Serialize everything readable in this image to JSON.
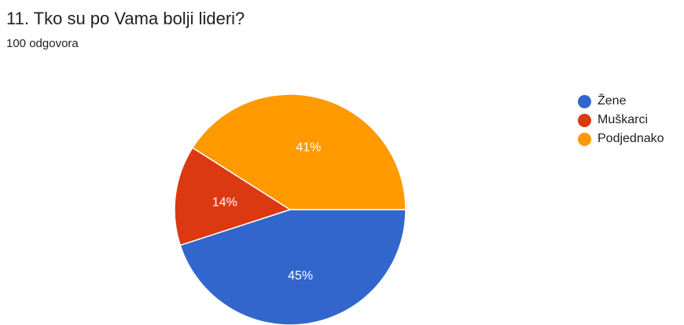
{
  "question": {
    "title": "11. Tko su po Vama bolji lideri?",
    "responses": "100 odgovora"
  },
  "chart_data": {
    "type": "pie",
    "categories": [
      "Žene",
      "Muškarci",
      "Podjednako"
    ],
    "values": [
      45,
      14,
      41
    ],
    "labels": [
      "45%",
      "14%",
      "41%"
    ],
    "colors": [
      "#3366cc",
      "#dc3912",
      "#ff9900"
    ],
    "legend_position": "right"
  }
}
